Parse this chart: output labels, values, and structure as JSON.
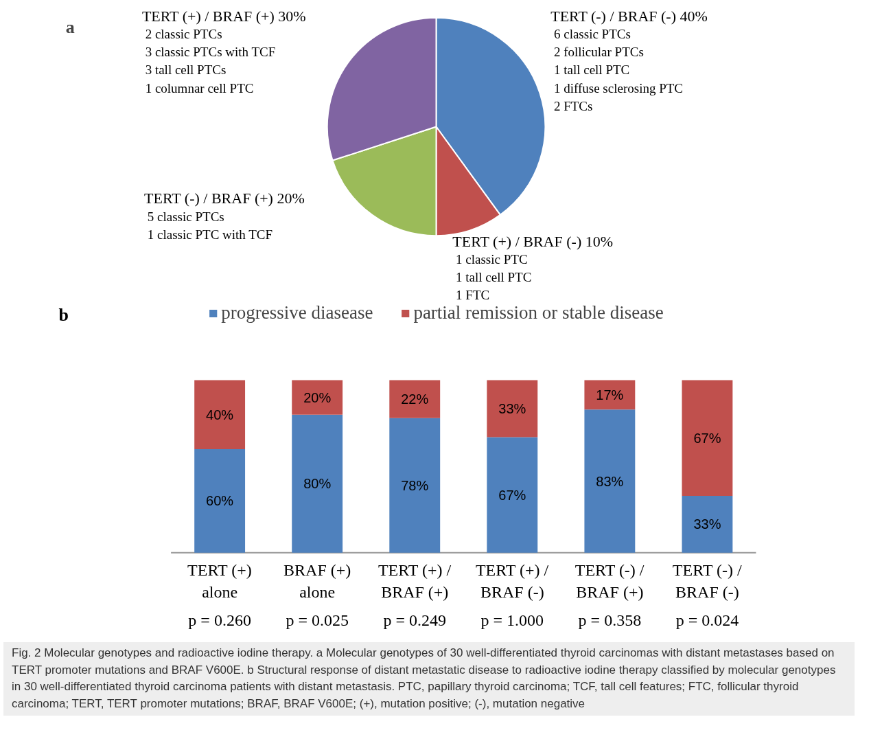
{
  "chart_data": [
    {
      "type": "pie",
      "title": "a",
      "categories": [
        "TERT (-) / BRAF (-) 40%\n6 classic PTCs\n2 follicular PTCs\n1 tall cell PTC\n1 diffuse sclerosing PTC\n2 FTCs",
        "TERT (+) / BRAF (-) 10%\n1 classic PTC\n1 tall cell PTC\n1 FTC",
        "TERT (-) / BRAF (+) 20%\n5 classic PTCs\n1 classic PTC with TCF",
        "TERT (+) / BRAF (+) 30%\n2 classic PTCs\n3 classic PTCs with TCF\n3 tall cell PTCs\n1 columnar cell  PTC"
      ],
      "values": [
        40,
        10,
        20,
        30
      ],
      "colors": [
        "#4f81bd",
        "#c0504d",
        "#9bbb59",
        "#8064a2"
      ],
      "legend": false
    },
    {
      "type": "bar",
      "title": "b",
      "stacked": true,
      "legend": "top",
      "grid": false,
      "categories": [
        "TERT (+)\nalone\np = 0.260",
        "BRAF (+)\nalone\np = 0.025",
        "TERT (+) /\nBRAF (+)\np = 0.249",
        "TERT (+) /\nBRAF (-)\np = 1.000",
        "TERT (-) /\nBRAF (+)\np = 0.358",
        "TERT (-) /\nBRAF (-)\np = 0.024"
      ],
      "series": [
        {
          "name": "progressive diasease",
          "color": "#4f81bd",
          "values": [
            60,
            80,
            78,
            67,
            83,
            33
          ],
          "value_labels": [
            "60%",
            "80%",
            "78%",
            "67%",
            "83%",
            "33%"
          ]
        },
        {
          "name": "partial remission or stable disease",
          "color": "#c0504d",
          "values": [
            40,
            20,
            22,
            33,
            17,
            67
          ],
          "value_labels": [
            "40%",
            "20%",
            "22%",
            "33%",
            "17%",
            "67%"
          ]
        }
      ],
      "annotations": [
        "Fig. 2 Molecular genotypes and radioactive iodine therapy. a Molecular genotypes of 30 well-differentiated thyroid carcinomas with distant metastases based on TERT promoter mutations and BRAF V600E. b Structural response of distant metastatic disease to radioactive iodine therapy classified by molecular genotypes in 30 well-differentiated thyroid carcinoma patients with distant metastasis. PTC, papillary thyroid carcinoma; TCF, tall cell features; FTC, follicular thyroid carcinoma; TERT, TERT promoter mutations; BRAF, BRAF V600E; (+), mutation positive; (-), mutation negative"
      ]
    }
  ]
}
